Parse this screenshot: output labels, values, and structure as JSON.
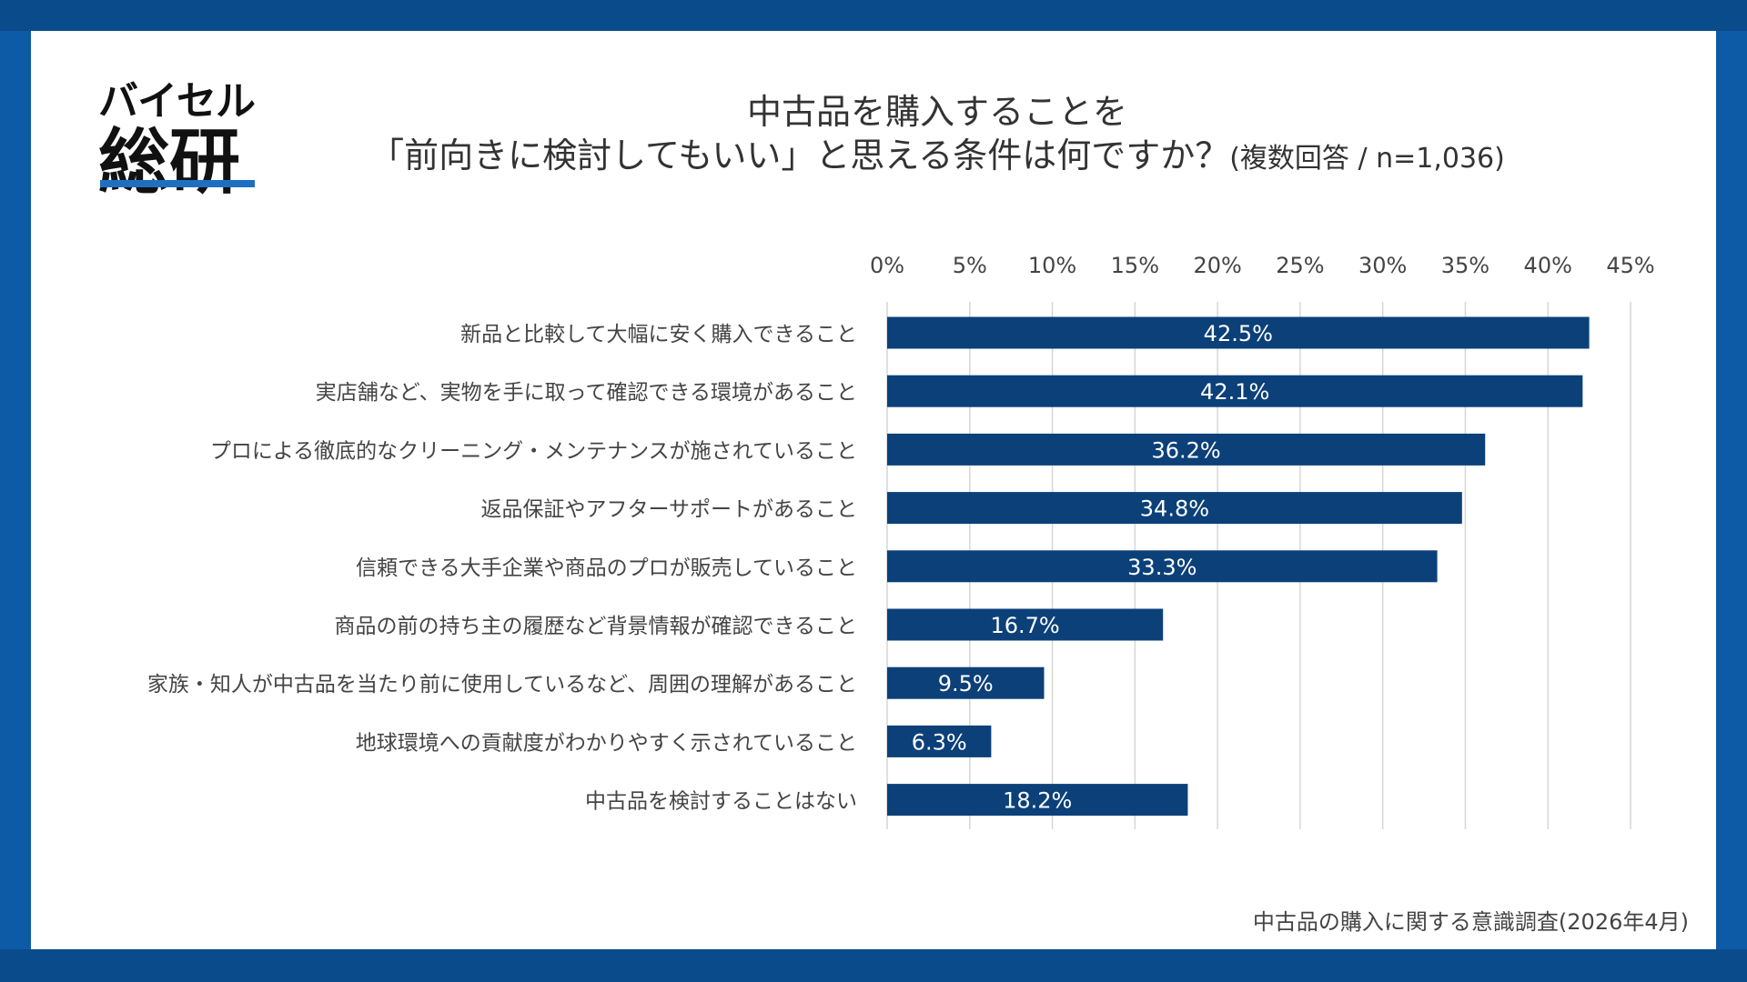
{
  "brand": {
    "logo_top": "バイセル",
    "logo_bottom": "総研"
  },
  "footer": {
    "source": "中古品の購入に関する意識調査(2026年4月)"
  },
  "colors": {
    "frame": "#0d5ba6",
    "frame_dark": "#0a4b8c",
    "bar": "#0c4079",
    "grid": "#d6d6d6",
    "text": "#333333"
  },
  "chart_data": {
    "type": "bar",
    "orientation": "horizontal",
    "title_line1": "中古品を購入することを",
    "title_line2": "「前向きに検討してもいい」と思える条件は何ですか？",
    "title_note": "(複数回答 / n=1,036)",
    "xlim": [
      0,
      45
    ],
    "ticks": [
      0,
      5,
      10,
      15,
      20,
      25,
      30,
      35,
      40,
      45
    ],
    "tick_labels": [
      "0%",
      "5%",
      "10%",
      "15%",
      "20%",
      "25%",
      "30%",
      "35%",
      "40%",
      "45%"
    ],
    "axis_position": "top",
    "grid": true,
    "categories": [
      "新品と比較して大幅に安く購入できること",
      "実店舗など、実物を手に取って確認できる環境があること",
      "プロによる徹底的なクリーニング・メンテナンスが施されていること",
      "返品保証やアフターサポートがあること",
      "信頼できる大手企業や商品のプロが販売していること",
      "商品の前の持ち主の履歴など背景情報が確認できること",
      "家族・知人が中古品を当たり前に使用しているなど、周囲の理解があること",
      "地球環境への貢献度がわかりやすく示されていること",
      "中古品を検討することはない"
    ],
    "values": [
      42.5,
      42.1,
      36.2,
      34.8,
      33.3,
      16.7,
      9.5,
      6.3,
      18.2
    ],
    "value_labels": [
      "42.5%",
      "42.1%",
      "36.2%",
      "34.8%",
      "33.3%",
      "16.7%",
      "9.5%",
      "6.3%",
      "18.2%"
    ]
  }
}
